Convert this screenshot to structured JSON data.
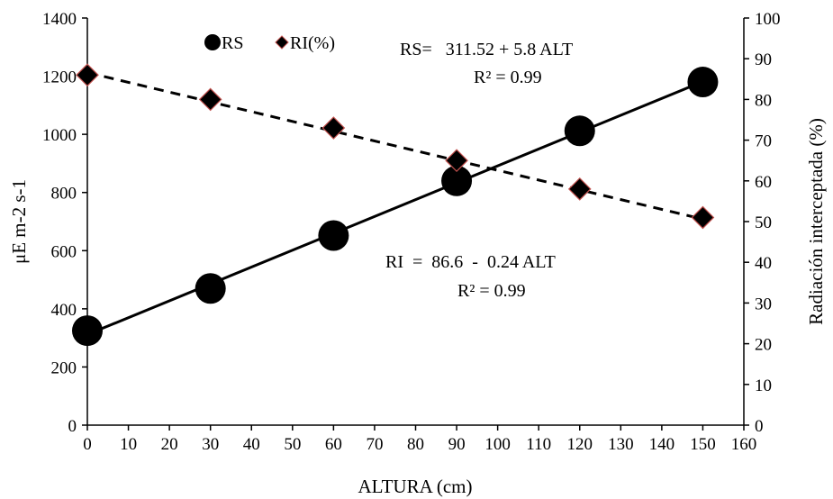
{
  "chart_data": {
    "type": "scatter",
    "xlabel": "ALTURA (cm)",
    "ylabel_left": "μE m-2 s-1",
    "ylabel_right": "Radiación interceptada (%)",
    "xlim": [
      0,
      160
    ],
    "ylim_left": [
      0,
      1400
    ],
    "ylim_right": [
      0,
      100
    ],
    "x_ticks": [
      "0",
      "10",
      "20",
      "30",
      "40",
      "50",
      "60",
      "70",
      "80",
      "90",
      "100",
      "110",
      "120",
      "130",
      "140",
      "150",
      "160"
    ],
    "y_left_ticks": [
      "0",
      "200",
      "400",
      "600",
      "800",
      "1000",
      "1200",
      "1400"
    ],
    "y_right_ticks": [
      "0",
      "10",
      "20",
      "30",
      "40",
      "50",
      "60",
      "70",
      "80",
      "90",
      "100"
    ],
    "grid": false,
    "legend_position": "top-left",
    "series": [
      {
        "name": "RS",
        "axis": "left",
        "marker": "circle",
        "color": "#000000",
        "trendline": "solid",
        "x": [
          0,
          30,
          60,
          90,
          120,
          150
        ],
        "y": [
          325,
          470,
          652,
          840,
          1012,
          1180
        ]
      },
      {
        "name": "RI(%)",
        "axis": "right",
        "marker": "diamond",
        "color": "#000000",
        "edge_color": "#c0504d",
        "trendline": "dashed",
        "x": [
          0,
          30,
          60,
          90,
          120,
          150
        ],
        "y": [
          86,
          80,
          73,
          65,
          58,
          51
        ]
      }
    ],
    "trendlines": [
      {
        "series": "RS",
        "intercept": 311.52,
        "slope": 5.8
      },
      {
        "series": "RI(%)",
        "intercept": 86.6,
        "slope": -0.24
      }
    ],
    "annotations": {
      "rs_equation": "RS=   311.52 + 5.8 ALT",
      "rs_r2": "R² = 0.99",
      "ri_equation": "RI  =  86.6  -  0.24 ALT",
      "ri_r2": "R² = 0.99"
    }
  }
}
